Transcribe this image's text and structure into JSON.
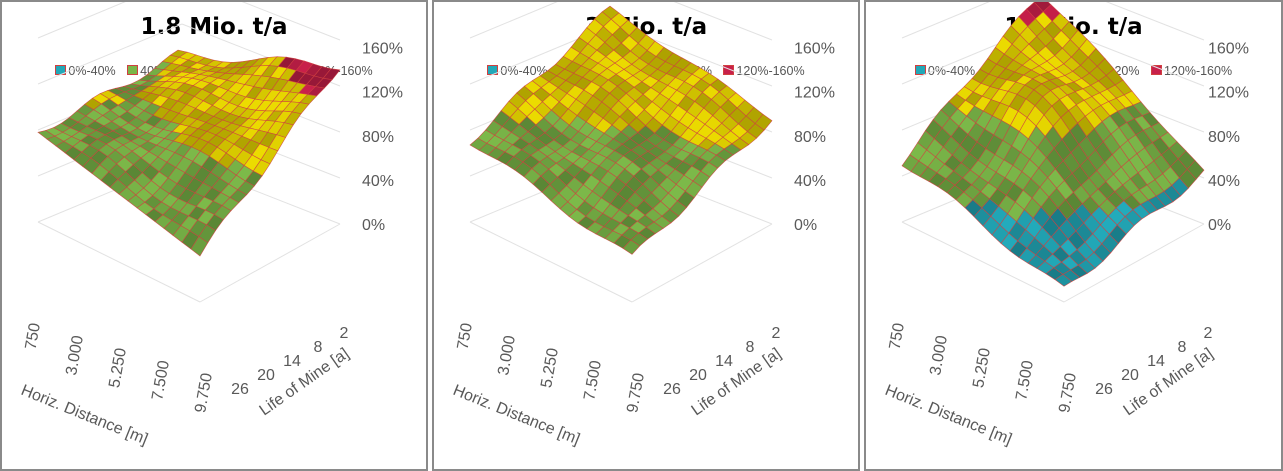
{
  "legend": [
    {
      "label": "0%-40%",
      "color": "#22a8b8"
    },
    {
      "label": "40%-80%",
      "color": "#7ab648"
    },
    {
      "label": "80%-120%",
      "color": "#e8d800"
    },
    {
      "label": "120%-160%",
      "color": "#c8204a"
    }
  ],
  "mesh_color": "#d04040",
  "chart_data": [
    {
      "type": "surface",
      "title": "1.8 Mio. t/a",
      "xlabel": "Horiz. Distance [m]",
      "ylabel": "Life of Mine [a]",
      "x_ticks": [
        "750",
        "3.000",
        "5.250",
        "7.500",
        "9.750"
      ],
      "y_ticks": [
        "26",
        "20",
        "14",
        "8",
        "2"
      ],
      "z_ticks": [
        "0%",
        "40%",
        "80%",
        "120%",
        "160%"
      ],
      "zlim": [
        0,
        160
      ],
      "surface": {
        "near": 40,
        "left": 78,
        "right": 138,
        "far": 78,
        "ridge": 0
      }
    },
    {
      "type": "surface",
      "title": "3 Mio. t/a",
      "xlabel": "Horiz. Distance [m]",
      "ylabel": "Life of Mine [a]",
      "x_ticks": [
        "750",
        "3.000",
        "5.250",
        "7.500",
        "9.750"
      ],
      "y_ticks": [
        "26",
        "20",
        "14",
        "8",
        "2"
      ],
      "z_ticks": [
        "0%",
        "40%",
        "80%",
        "120%",
        "160%"
      ],
      "zlim": [
        0,
        160
      ],
      "surface": {
        "near": 38,
        "left": 70,
        "right": 92,
        "far": 118,
        "ridge": 0
      }
    },
    {
      "type": "surface",
      "title": "15 Mio. t/a",
      "xlabel": "Horiz. Distance [m]",
      "ylabel": "Life of Mine [a]",
      "x_ticks": [
        "750",
        "3.000",
        "5.250",
        "7.500",
        "9.750"
      ],
      "y_ticks": [
        "26",
        "20",
        "14",
        "8",
        "2"
      ],
      "z_ticks": [
        "0%",
        "40%",
        "80%",
        "120%",
        "160%"
      ],
      "zlim": [
        0,
        160
      ],
      "surface": {
        "near": 10,
        "left": 52,
        "right": 45,
        "far": 130,
        "ridge": 45
      }
    }
  ]
}
